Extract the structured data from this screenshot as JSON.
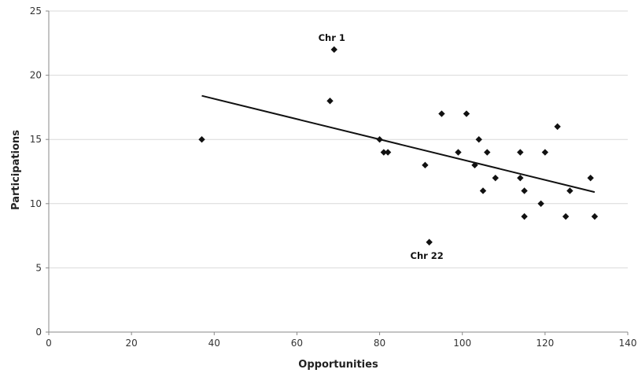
{
  "chart_data": {
    "type": "scatter",
    "title": "",
    "xlabel": "Opportunities",
    "ylabel": "Participations",
    "xlim": [
      0,
      140
    ],
    "ylim": [
      0,
      25
    ],
    "xticks": [
      0,
      20,
      40,
      60,
      80,
      100,
      120,
      140
    ],
    "yticks": [
      0,
      5,
      10,
      15,
      20,
      25
    ],
    "grid": "horizontal",
    "legend": "none",
    "marker": "diamond",
    "points": [
      {
        "x": 37,
        "y": 15
      },
      {
        "x": 68,
        "y": 18
      },
      {
        "x": 69,
        "y": 22
      },
      {
        "x": 80,
        "y": 15
      },
      {
        "x": 81,
        "y": 14
      },
      {
        "x": 82,
        "y": 14
      },
      {
        "x": 91,
        "y": 13
      },
      {
        "x": 92,
        "y": 7
      },
      {
        "x": 95,
        "y": 17
      },
      {
        "x": 99,
        "y": 14
      },
      {
        "x": 101,
        "y": 17
      },
      {
        "x": 103,
        "y": 13
      },
      {
        "x": 104,
        "y": 15
      },
      {
        "x": 105,
        "y": 11
      },
      {
        "x": 106,
        "y": 14
      },
      {
        "x": 108,
        "y": 12
      },
      {
        "x": 114,
        "y": 14
      },
      {
        "x": 114,
        "y": 12
      },
      {
        "x": 115,
        "y": 11
      },
      {
        "x": 115,
        "y": 9
      },
      {
        "x": 119,
        "y": 10
      },
      {
        "x": 120,
        "y": 14
      },
      {
        "x": 123,
        "y": 16
      },
      {
        "x": 125,
        "y": 9
      },
      {
        "x": 126,
        "y": 11
      },
      {
        "x": 131,
        "y": 12
      },
      {
        "x": 132,
        "y": 9
      }
    ],
    "trendline": {
      "x": [
        37,
        132
      ],
      "y": [
        18.4,
        10.9
      ]
    },
    "annotations": [
      {
        "text": "Chr 1",
        "x": 69,
        "y": 22
      },
      {
        "text": "Chr 22",
        "x": 92,
        "y": 7
      }
    ],
    "colors": {
      "points": "#111111",
      "trendline": "#111111",
      "grid": "#d9d9d9"
    }
  }
}
